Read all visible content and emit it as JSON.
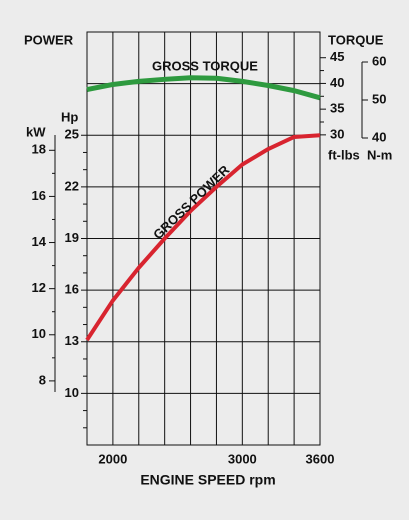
{
  "chart_data": {
    "type": "line",
    "power_label": "POWER",
    "torque_label": "TORQUE",
    "xlabel": "ENGINE SPEED rpm",
    "x": [
      1800,
      2000,
      2200,
      2400,
      2600,
      2800,
      3000,
      3200,
      3400,
      3600
    ],
    "xlim": [
      1800,
      3600
    ],
    "xticks": [
      2000,
      3000,
      3600
    ],
    "x_minor_gridlines": [
      2200,
      2400,
      2600,
      2800,
      3200,
      3400
    ],
    "ylabel": "Hp",
    "ylim": [
      7,
      31
    ],
    "yticks": [
      10,
      13,
      16,
      19,
      22,
      25
    ],
    "y_minor_ticks": [
      8,
      9,
      11,
      12,
      14,
      15,
      17,
      18,
      20,
      21,
      23,
      24
    ],
    "y_extra_gridlines": [
      28
    ],
    "y2label": "ft-lbs",
    "y2lim": [
      -30.3,
      50
    ],
    "y2ticks": [
      30,
      35,
      40,
      45
    ],
    "y2_minor_ticks": [
      32.5,
      37.5,
      42.5
    ],
    "y3label": "N-m",
    "y3lim": [
      -40.8,
      67.9
    ],
    "y3ticks": [
      40,
      50,
      60
    ],
    "y4label": "kW",
    "y4lim": [
      5.22,
      23.13
    ],
    "y4ticks": [
      8,
      10,
      12,
      14,
      16,
      18
    ],
    "y4_minor_ticks": [
      9,
      11,
      13,
      15,
      17
    ],
    "grid": true,
    "series": [
      {
        "name": "GROSS TORQUE",
        "color": "#2e9a3f",
        "axis": "y2",
        "values": [
          38.8,
          39.8,
          40.4,
          40.8,
          41.1,
          41.0,
          40.4,
          39.6,
          38.6,
          37.2
        ]
      },
      {
        "name": "GROSS POWER",
        "color": "#d8242f",
        "values": [
          13.1,
          15.4,
          17.3,
          19.0,
          20.6,
          22.0,
          23.3,
          24.2,
          24.9,
          25.0
        ]
      }
    ]
  }
}
